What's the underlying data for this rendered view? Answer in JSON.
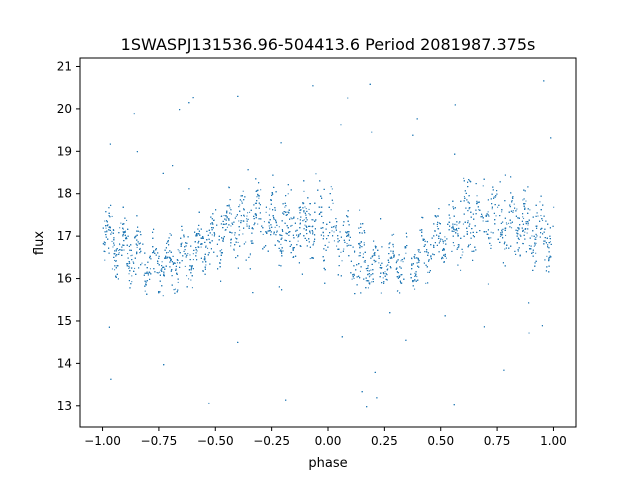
{
  "chart_data": {
    "type": "scatter",
    "title": "1SWASPJ131536.96-504413.6 Period 2081987.375s",
    "xlabel": "phase",
    "ylabel": "flux",
    "xlim": [
      -1.1,
      1.1
    ],
    "ylim": [
      12.5,
      21.2
    ],
    "xticks": [
      -1.0,
      -0.75,
      -0.5,
      -0.25,
      0.0,
      0.25,
      0.5,
      0.75,
      1.0
    ],
    "xtick_labels": [
      "−1.00",
      "−0.75",
      "−0.50",
      "−0.25",
      "0.00",
      "0.25",
      "0.50",
      "0.75",
      "1.00"
    ],
    "yticks": [
      13,
      14,
      15,
      16,
      17,
      18,
      19,
      20,
      21
    ],
    "ytick_labels": [
      "13",
      "14",
      "15",
      "16",
      "17",
      "18",
      "19",
      "20",
      "21"
    ],
    "grid": false,
    "color": "#1f77b4",
    "series": [
      {
        "values_profile": {
          "phase": [
            -1.0,
            -0.9,
            -0.8,
            -0.7,
            -0.6,
            -0.5,
            -0.4,
            -0.3,
            -0.2,
            -0.1,
            0.0,
            0.1,
            0.2,
            0.3,
            0.4,
            0.5,
            0.6,
            0.7,
            0.8,
            0.9,
            1.0
          ],
          "mean_flux": [
            17.0,
            16.7,
            16.4,
            16.3,
            16.6,
            17.0,
            17.3,
            17.4,
            17.1,
            17.3,
            17.4,
            16.6,
            16.3,
            16.3,
            16.6,
            17.0,
            17.3,
            17.6,
            17.4,
            17.2,
            17.0
          ],
          "spread": [
            0.75,
            0.7,
            0.65,
            0.6,
            0.65,
            0.75,
            0.9,
            0.95,
            0.95,
            0.95,
            0.95,
            0.75,
            0.65,
            0.6,
            0.65,
            0.75,
            0.9,
            0.95,
            0.95,
            0.9,
            0.8
          ]
        },
        "x_range": [
          -1.0,
          1.0
        ],
        "y_outlier_range": [
          12.9,
          20.8
        ]
      }
    ]
  }
}
